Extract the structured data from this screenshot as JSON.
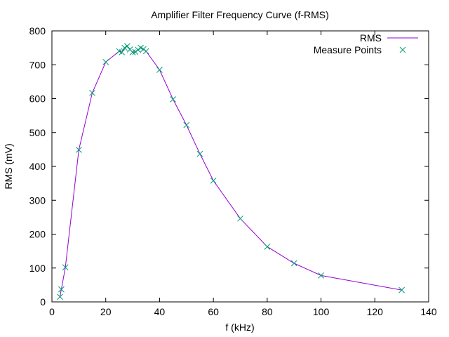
{
  "chart_data": {
    "type": "line",
    "title": "Amplifier Filter Frequency Curve (f-RMS)",
    "xlabel": "f (kHz)",
    "ylabel": "RMS (mV)",
    "xlim": [
      0,
      140
    ],
    "ylim": [
      0,
      800
    ],
    "xticks": [
      0,
      20,
      40,
      60,
      80,
      100,
      120,
      140
    ],
    "yticks": [
      0,
      100,
      200,
      300,
      400,
      500,
      600,
      700,
      800
    ],
    "grid": false,
    "legend_position": "top-right",
    "series": [
      {
        "name": "RMS",
        "style": "line",
        "color": "#9400d3",
        "x": [
          3,
          3.5,
          5,
          10,
          15,
          20,
          25,
          26,
          27,
          28,
          29,
          30,
          31,
          32,
          33,
          34,
          35,
          40,
          45,
          50,
          55,
          60,
          70,
          80,
          90,
          100,
          130
        ],
        "y": [
          15,
          37,
          102,
          449,
          617,
          708,
          740,
          737,
          750,
          755,
          745,
          737,
          738,
          744,
          750,
          746,
          740,
          685,
          598,
          522,
          437,
          358,
          246,
          163,
          114,
          78,
          35
        ]
      },
      {
        "name": "Measure Points",
        "style": "points",
        "marker": "x",
        "color": "#009e73",
        "x": [
          3,
          3.5,
          5,
          10,
          15,
          20,
          25,
          26,
          27,
          28,
          29,
          30,
          31,
          32,
          33,
          34,
          35,
          40,
          45,
          50,
          55,
          60,
          70,
          80,
          90,
          100,
          130
        ],
        "y": [
          15,
          37,
          102,
          449,
          617,
          708,
          740,
          737,
          750,
          755,
          745,
          737,
          738,
          744,
          750,
          746,
          740,
          685,
          598,
          522,
          437,
          358,
          246,
          163,
          114,
          78,
          35
        ]
      }
    ]
  }
}
